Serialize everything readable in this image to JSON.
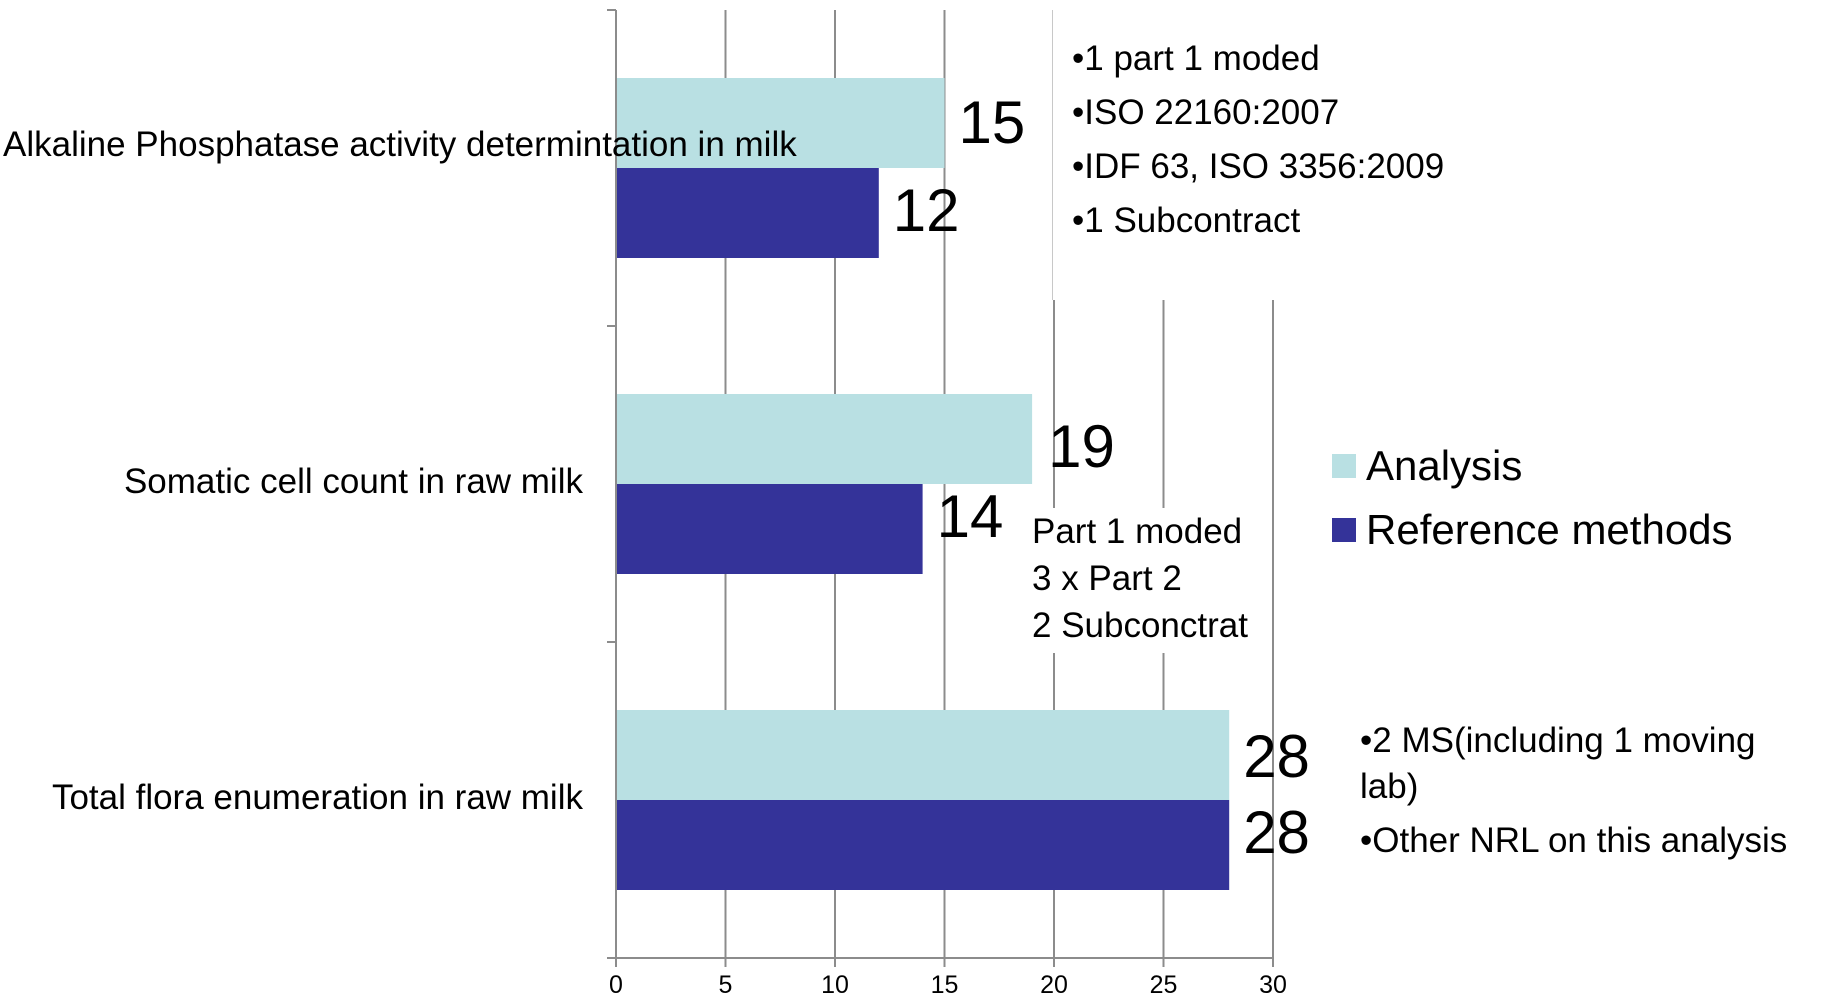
{
  "chart_data": {
    "type": "bar",
    "orientation": "horizontal",
    "categories": [
      "Alkaline Phosphatase activity determintation in milk",
      "Somatic cell count in raw milk",
      "Total flora enumeration in raw milk"
    ],
    "series": [
      {
        "name": "Analysis",
        "color": "#b9e0e3",
        "values": [
          15,
          19,
          28
        ]
      },
      {
        "name": "Reference methods",
        "color": "#343399",
        "values": [
          12,
          14,
          28
        ]
      }
    ],
    "xlim": [
      0,
      30
    ],
    "xticks": [
      "0",
      "5",
      "10",
      "15",
      "20",
      "25",
      "30"
    ],
    "grid": true,
    "legend_position": "right",
    "annotations": {
      "alkaline": [
        "•1 part 1 moded",
        "•ISO 22160:2007",
        "•IDF 63, ISO 3356:2009",
        "•1 Subcontract"
      ],
      "somatic": [
        "Part 1 moded",
        "3 x Part 2",
        "2 Subconctrat"
      ],
      "total_flora": [
        "•2 MS(including 1 moving lab)",
        "•Other NRL on this analysis"
      ]
    }
  }
}
